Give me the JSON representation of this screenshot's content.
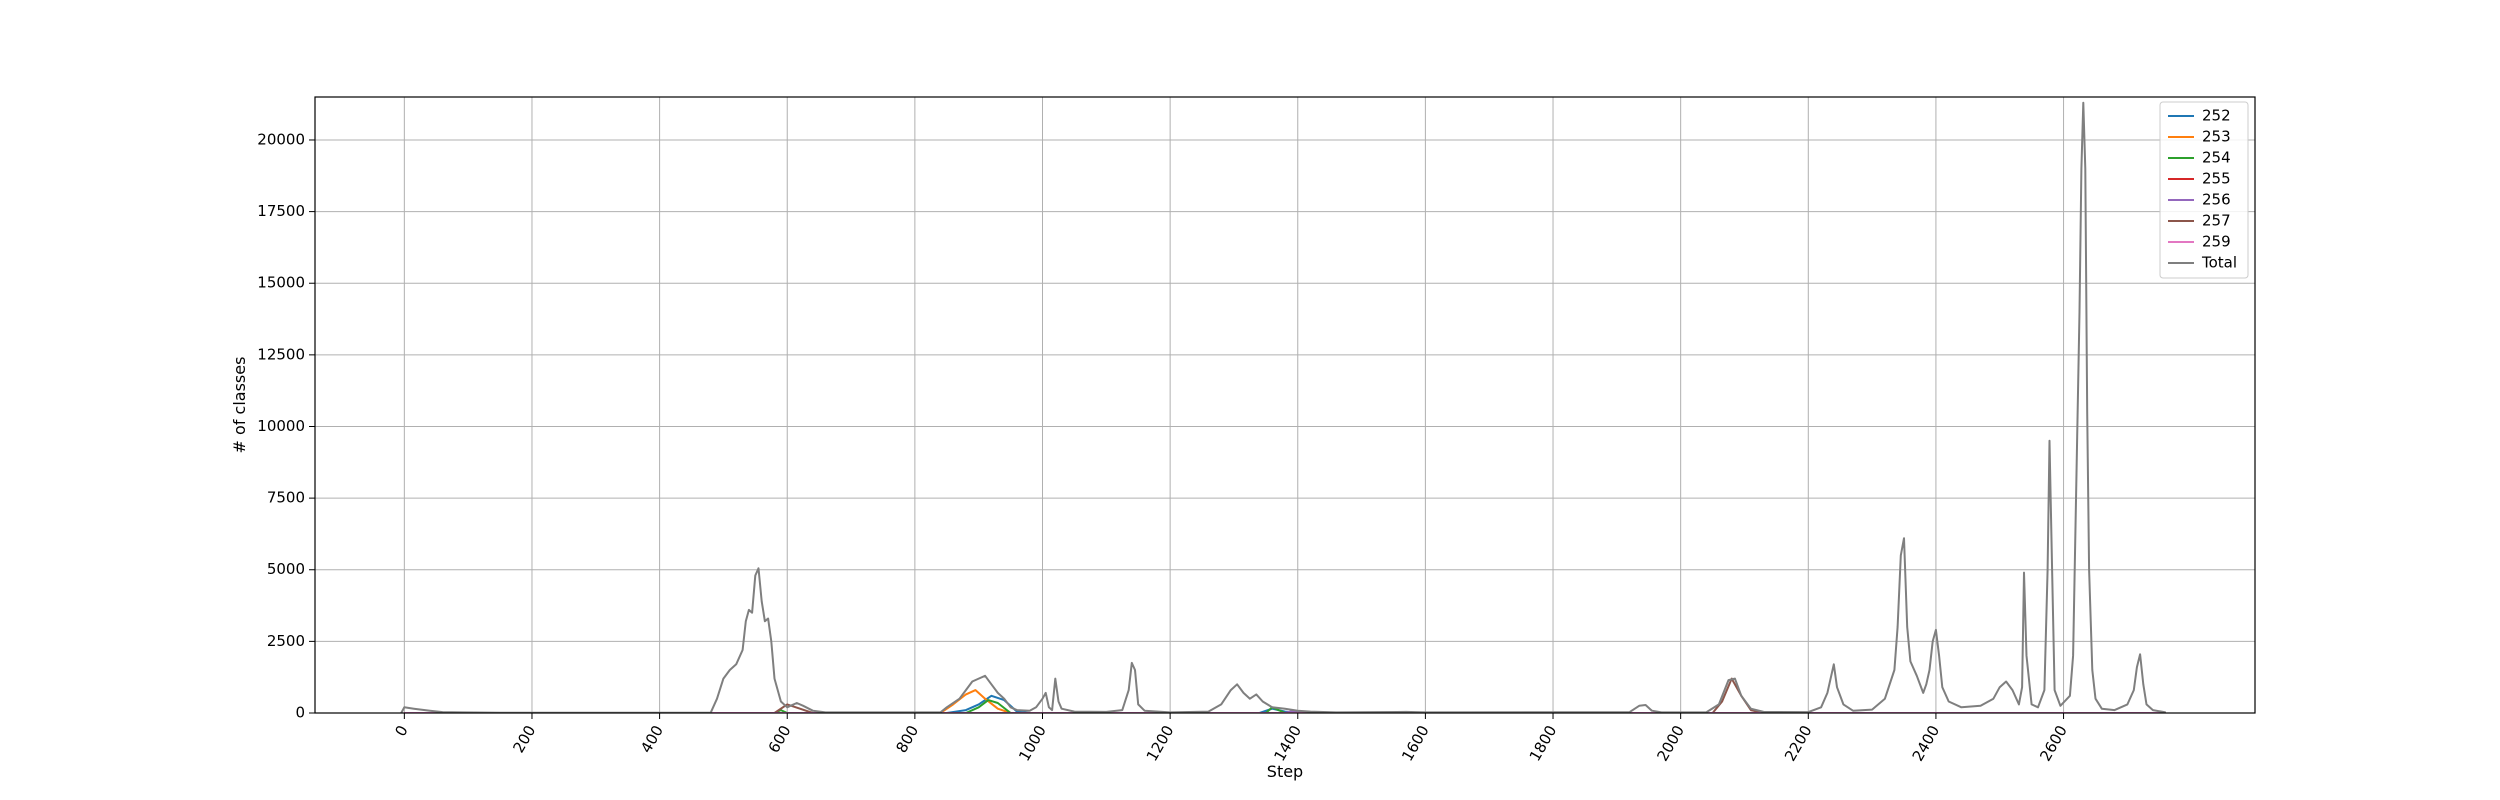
{
  "chart_data": {
    "type": "line",
    "xlabel": "Step",
    "ylabel": "# of classes",
    "xlim": [
      -140,
      2900
    ],
    "ylim": [
      0,
      21500
    ],
    "x_ticks": [
      0,
      200,
      400,
      600,
      800,
      1000,
      1200,
      1400,
      1600,
      1800,
      2000,
      2200,
      2400,
      2600
    ],
    "y_ticks": [
      0,
      2500,
      5000,
      7500,
      10000,
      12500,
      15000,
      17500,
      20000
    ],
    "grid": true,
    "legend_position": "top-right",
    "colors": {
      "252": "#1f77b4",
      "253": "#ff7f0e",
      "254": "#2ca02c",
      "255": "#d62728",
      "256": "#9467bd",
      "257": "#8c564b",
      "259": "#e377c2",
      "Total": "#7f7f7f"
    },
    "series": [
      {
        "name": "252",
        "points": [
          [
            0,
            0
          ],
          [
            850,
            0
          ],
          [
            880,
            100
          ],
          [
            900,
            300
          ],
          [
            920,
            600
          ],
          [
            940,
            450
          ],
          [
            960,
            50
          ],
          [
            980,
            0
          ],
          [
            1340,
            0
          ],
          [
            1360,
            150
          ],
          [
            1380,
            50
          ],
          [
            1400,
            0
          ],
          [
            2760,
            0
          ]
        ]
      },
      {
        "name": "253",
        "points": [
          [
            0,
            0
          ],
          [
            840,
            0
          ],
          [
            860,
            300
          ],
          [
            880,
            650
          ],
          [
            895,
            800
          ],
          [
            910,
            500
          ],
          [
            930,
            150
          ],
          [
            950,
            0
          ],
          [
            2760,
            0
          ]
        ]
      },
      {
        "name": "254",
        "points": [
          [
            0,
            0
          ],
          [
            580,
            0
          ],
          [
            590,
            100
          ],
          [
            600,
            0
          ],
          [
            880,
            0
          ],
          [
            900,
            200
          ],
          [
            915,
            450
          ],
          [
            930,
            350
          ],
          [
            950,
            0
          ],
          [
            1350,
            0
          ],
          [
            1360,
            200
          ],
          [
            1370,
            100
          ],
          [
            1380,
            0
          ],
          [
            2760,
            0
          ]
        ]
      },
      {
        "name": "255",
        "points": [
          [
            0,
            0
          ],
          [
            2760,
            0
          ]
        ]
      },
      {
        "name": "256",
        "points": [
          [
            0,
            0
          ],
          [
            1380,
            0
          ],
          [
            1390,
            60
          ],
          [
            1410,
            0
          ],
          [
            2760,
            0
          ]
        ]
      },
      {
        "name": "257",
        "points": [
          [
            0,
            0
          ],
          [
            580,
            0
          ],
          [
            600,
            300
          ],
          [
            620,
            150
          ],
          [
            640,
            0
          ],
          [
            2050,
            0
          ],
          [
            2065,
            400
          ],
          [
            2080,
            1200
          ],
          [
            2095,
            600
          ],
          [
            2110,
            100
          ],
          [
            2130,
            0
          ],
          [
            2760,
            0
          ]
        ]
      },
      {
        "name": "259",
        "points": [
          [
            0,
            0
          ],
          [
            2760,
            0
          ]
        ]
      },
      {
        "name": "Total",
        "points": [
          [
            -5,
            0
          ],
          [
            0,
            200
          ],
          [
            15,
            150
          ],
          [
            40,
            80
          ],
          [
            60,
            30
          ],
          [
            90,
            20
          ],
          [
            150,
            10
          ],
          [
            300,
            10
          ],
          [
            480,
            10
          ],
          [
            490,
            500
          ],
          [
            500,
            1200
          ],
          [
            510,
            1500
          ],
          [
            520,
            1700
          ],
          [
            530,
            2200
          ],
          [
            535,
            3200
          ],
          [
            540,
            3600
          ],
          [
            545,
            3500
          ],
          [
            550,
            4800
          ],
          [
            555,
            5050
          ],
          [
            560,
            3900
          ],
          [
            565,
            3200
          ],
          [
            570,
            3300
          ],
          [
            575,
            2500
          ],
          [
            580,
            1200
          ],
          [
            590,
            400
          ],
          [
            600,
            200
          ],
          [
            605,
            250
          ],
          [
            615,
            350
          ],
          [
            625,
            250
          ],
          [
            640,
            80
          ],
          [
            660,
            20
          ],
          [
            840,
            20
          ],
          [
            850,
            200
          ],
          [
            870,
            500
          ],
          [
            880,
            800
          ],
          [
            890,
            1100
          ],
          [
            900,
            1200
          ],
          [
            910,
            1300
          ],
          [
            920,
            1000
          ],
          [
            930,
            700
          ],
          [
            940,
            500
          ],
          [
            950,
            200
          ],
          [
            960,
            100
          ],
          [
            980,
            80
          ],
          [
            990,
            200
          ],
          [
            1000,
            500
          ],
          [
            1005,
            700
          ],
          [
            1010,
            200
          ],
          [
            1015,
            100
          ],
          [
            1020,
            1200
          ],
          [
            1025,
            400
          ],
          [
            1030,
            150
          ],
          [
            1050,
            50
          ],
          [
            1100,
            40
          ],
          [
            1125,
            100
          ],
          [
            1135,
            800
          ],
          [
            1140,
            1750
          ],
          [
            1145,
            1500
          ],
          [
            1150,
            300
          ],
          [
            1160,
            80
          ],
          [
            1200,
            20
          ],
          [
            1260,
            50
          ],
          [
            1280,
            300
          ],
          [
            1295,
            800
          ],
          [
            1305,
            1000
          ],
          [
            1315,
            700
          ],
          [
            1325,
            500
          ],
          [
            1335,
            650
          ],
          [
            1345,
            400
          ],
          [
            1360,
            200
          ],
          [
            1380,
            150
          ],
          [
            1400,
            80
          ],
          [
            1420,
            50
          ],
          [
            1460,
            20
          ],
          [
            1570,
            40
          ],
          [
            1600,
            20
          ],
          [
            1920,
            30
          ],
          [
            1935,
            250
          ],
          [
            1945,
            280
          ],
          [
            1955,
            80
          ],
          [
            1970,
            20
          ],
          [
            2040,
            20
          ],
          [
            2060,
            300
          ],
          [
            2075,
            1150
          ],
          [
            2085,
            1200
          ],
          [
            2095,
            600
          ],
          [
            2110,
            150
          ],
          [
            2130,
            40
          ],
          [
            2200,
            30
          ],
          [
            2220,
            200
          ],
          [
            2230,
            700
          ],
          [
            2240,
            1700
          ],
          [
            2245,
            900
          ],
          [
            2255,
            300
          ],
          [
            2270,
            80
          ],
          [
            2300,
            120
          ],
          [
            2320,
            500
          ],
          [
            2335,
            1500
          ],
          [
            2340,
            3000
          ],
          [
            2345,
            5500
          ],
          [
            2350,
            6100
          ],
          [
            2355,
            3000
          ],
          [
            2360,
            1800
          ],
          [
            2370,
            1300
          ],
          [
            2380,
            700
          ],
          [
            2385,
            1000
          ],
          [
            2390,
            1500
          ],
          [
            2395,
            2500
          ],
          [
            2400,
            2900
          ],
          [
            2405,
            2000
          ],
          [
            2410,
            900
          ],
          [
            2420,
            400
          ],
          [
            2440,
            200
          ],
          [
            2470,
            250
          ],
          [
            2490,
            500
          ],
          [
            2500,
            900
          ],
          [
            2510,
            1100
          ],
          [
            2520,
            800
          ],
          [
            2530,
            300
          ],
          [
            2535,
            900
          ],
          [
            2538,
            4900
          ],
          [
            2542,
            2000
          ],
          [
            2550,
            300
          ],
          [
            2560,
            200
          ],
          [
            2570,
            800
          ],
          [
            2575,
            5000
          ],
          [
            2578,
            9500
          ],
          [
            2582,
            5000
          ],
          [
            2586,
            800
          ],
          [
            2595,
            250
          ],
          [
            2610,
            600
          ],
          [
            2615,
            2000
          ],
          [
            2620,
            8000
          ],
          [
            2625,
            14000
          ],
          [
            2628,
            19000
          ],
          [
            2631,
            21300
          ],
          [
            2634,
            19000
          ],
          [
            2637,
            10500
          ],
          [
            2640,
            5000
          ],
          [
            2645,
            1500
          ],
          [
            2650,
            500
          ],
          [
            2660,
            150
          ],
          [
            2680,
            100
          ],
          [
            2700,
            300
          ],
          [
            2710,
            800
          ],
          [
            2715,
            1600
          ],
          [
            2720,
            2050
          ],
          [
            2725,
            1000
          ],
          [
            2730,
            300
          ],
          [
            2740,
            100
          ],
          [
            2760,
            20
          ]
        ]
      }
    ]
  }
}
